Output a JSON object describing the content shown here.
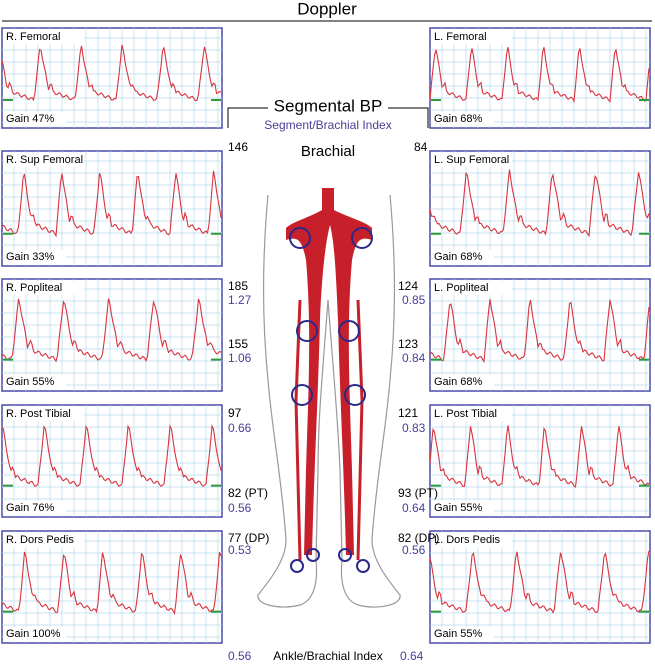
{
  "header": {
    "title": "Doppler"
  },
  "left_panels": [
    {
      "label": "R. Femoral",
      "gain": "Gain 47%"
    },
    {
      "label": "R. Sup Femoral",
      "gain": "Gain 33%"
    },
    {
      "label": "R. Popliteal",
      "gain": "Gain 55%"
    },
    {
      "label": "R. Post Tibial",
      "gain": "Gain 76%"
    },
    {
      "label": "R. Dors Pedis",
      "gain": "Gain 100%"
    }
  ],
  "right_panels": [
    {
      "label": "L. Femoral",
      "gain": "Gain 68%"
    },
    {
      "label": "L. Sup Femoral",
      "gain": "Gain 68%"
    },
    {
      "label": "L. Popliteal",
      "gain": "Gain 68%"
    },
    {
      "label": "L. Post Tibial",
      "gain": "Gain 55%"
    },
    {
      "label": "L. Dors Pedis",
      "gain": "Gain 55%"
    }
  ],
  "center": {
    "title": "Segmental BP",
    "subtitle": "Segment/Brachial Index",
    "brachial_label": "Brachial",
    "brachial_left": 146,
    "brachial_right": 84
  },
  "segments": [
    {
      "left_pressure": "185",
      "left_index": "1.27",
      "right_pressure": "124",
      "right_index": "0.85"
    },
    {
      "left_pressure": "155",
      "left_index": "1.06",
      "right_pressure": "123",
      "right_index": "0.84"
    },
    {
      "left_pressure": "97",
      "left_index": "0.66",
      "right_pressure": "121",
      "right_index": "0.83"
    },
    {
      "left_pressure": "82 (PT)",
      "left_index": "0.56",
      "right_pressure": "93 (PT)",
      "right_index": "0.64"
    },
    {
      "left_pressure": "77 (DP)",
      "left_index": "0.53",
      "right_pressure": "82 (DP)",
      "right_index": "0.56"
    }
  ],
  "footer": {
    "left": "0.56",
    "label": "Ankle/Brachial Index",
    "right": "0.64"
  }
}
